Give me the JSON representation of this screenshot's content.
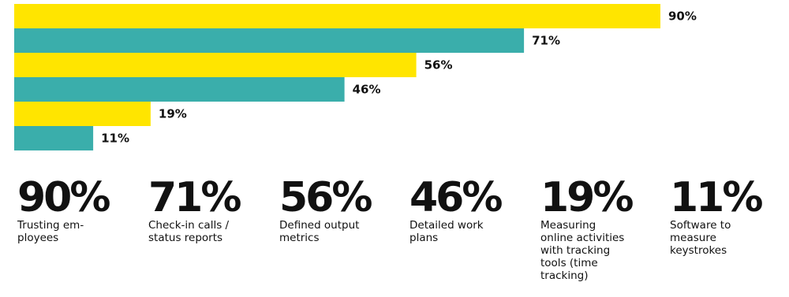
{
  "chart_data": {
    "type": "bar",
    "orientation": "horizontal",
    "categories": [
      "Trusting employees",
      "Check-in calls / status reports",
      "Defined output metrics",
      "Detailed work plans",
      "Measuring online activities with tracking tools (time tracking)",
      "Software to measure keystrokes"
    ],
    "values": [
      90,
      71,
      56,
      46,
      19,
      11
    ],
    "value_labels": [
      "90%",
      "71%",
      "56%",
      "46%",
      "19%",
      "11%"
    ],
    "unit": "%",
    "xlim": [
      0,
      100
    ],
    "colors": [
      "#FFE500",
      "#3AAEAB"
    ],
    "grid": false,
    "legend": "none",
    "title": "",
    "xlabel": "",
    "ylabel": ""
  },
  "stats": [
    {
      "value": "90%",
      "label": "Trusting em-ployees"
    },
    {
      "value": "71%",
      "label": "Check-in calls / status reports"
    },
    {
      "value": "56%",
      "label": "Defined output metrics"
    },
    {
      "value": "46%",
      "label": "Detailed work plans"
    },
    {
      "value": "19%",
      "label": "Measuring online activities with tracking tools (time tracking)"
    },
    {
      "value": "11%",
      "label": "Software to measure keystrokes"
    }
  ]
}
